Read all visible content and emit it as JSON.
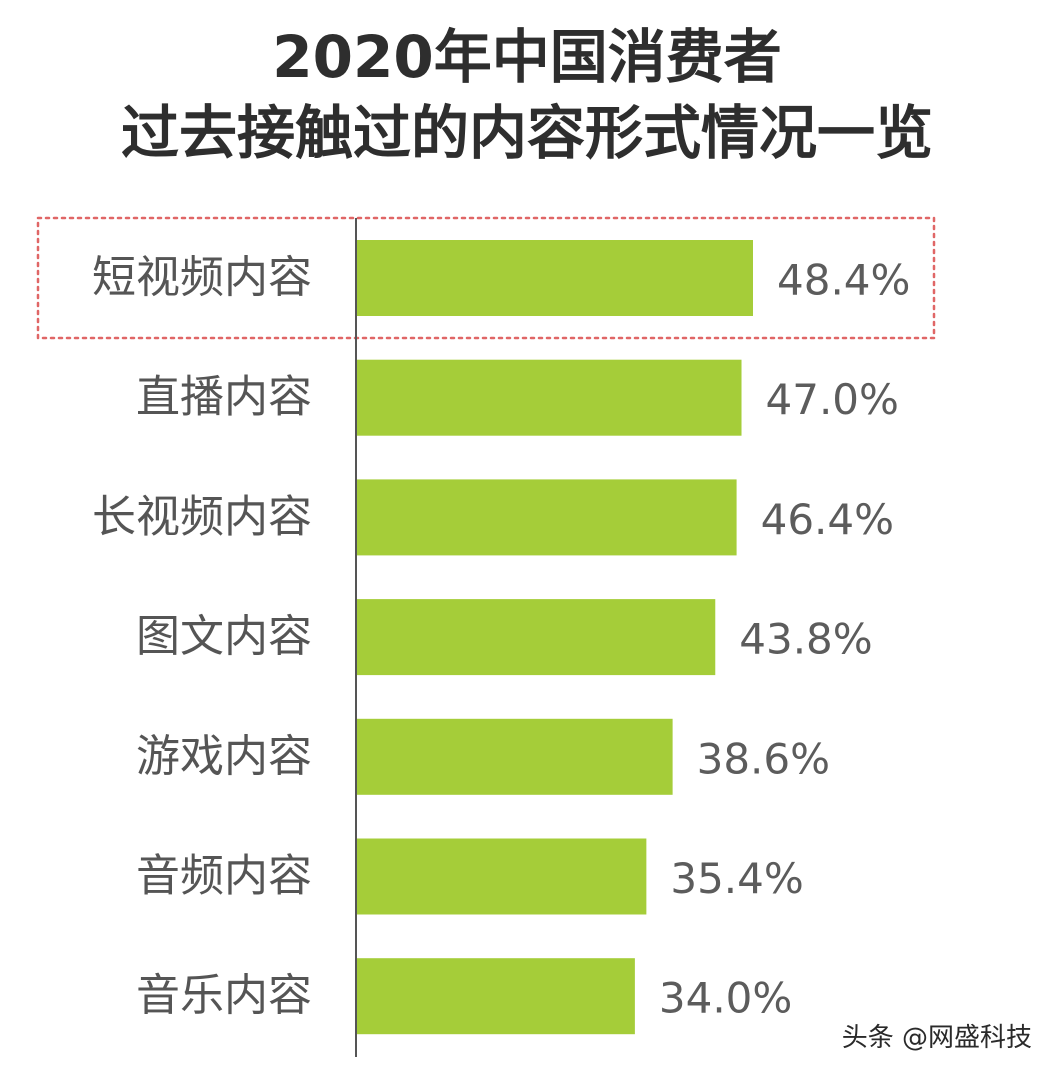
{
  "title_line1": "2020年中国消费者",
  "title_line2": "过去接触过的内容形式情况一览",
  "watermark": "头条 @网盛科技",
  "chart_data": {
    "type": "bar",
    "orientation": "horizontal",
    "title": "2020年中国消费者 过去接触过的内容形式情况一览",
    "categories": [
      "短视频内容",
      "直播内容",
      "长视频内容",
      "图文内容",
      "游戏内容",
      "音频内容",
      "音乐内容"
    ],
    "values": [
      48.4,
      47.0,
      46.4,
      43.8,
      38.6,
      35.4,
      34.0
    ],
    "value_labels": [
      "48.4%",
      "47.0%",
      "46.4%",
      "43.8%",
      "38.6%",
      "35.4%",
      "34.0%"
    ],
    "unit": "%",
    "highlighted_category": "短视频内容",
    "bar_color": "#a5cd39",
    "highlight_box_color": "#e06666",
    "axis_color": "#555555",
    "xlim": [
      0,
      48.4
    ],
    "grid": false,
    "legend": "none"
  }
}
